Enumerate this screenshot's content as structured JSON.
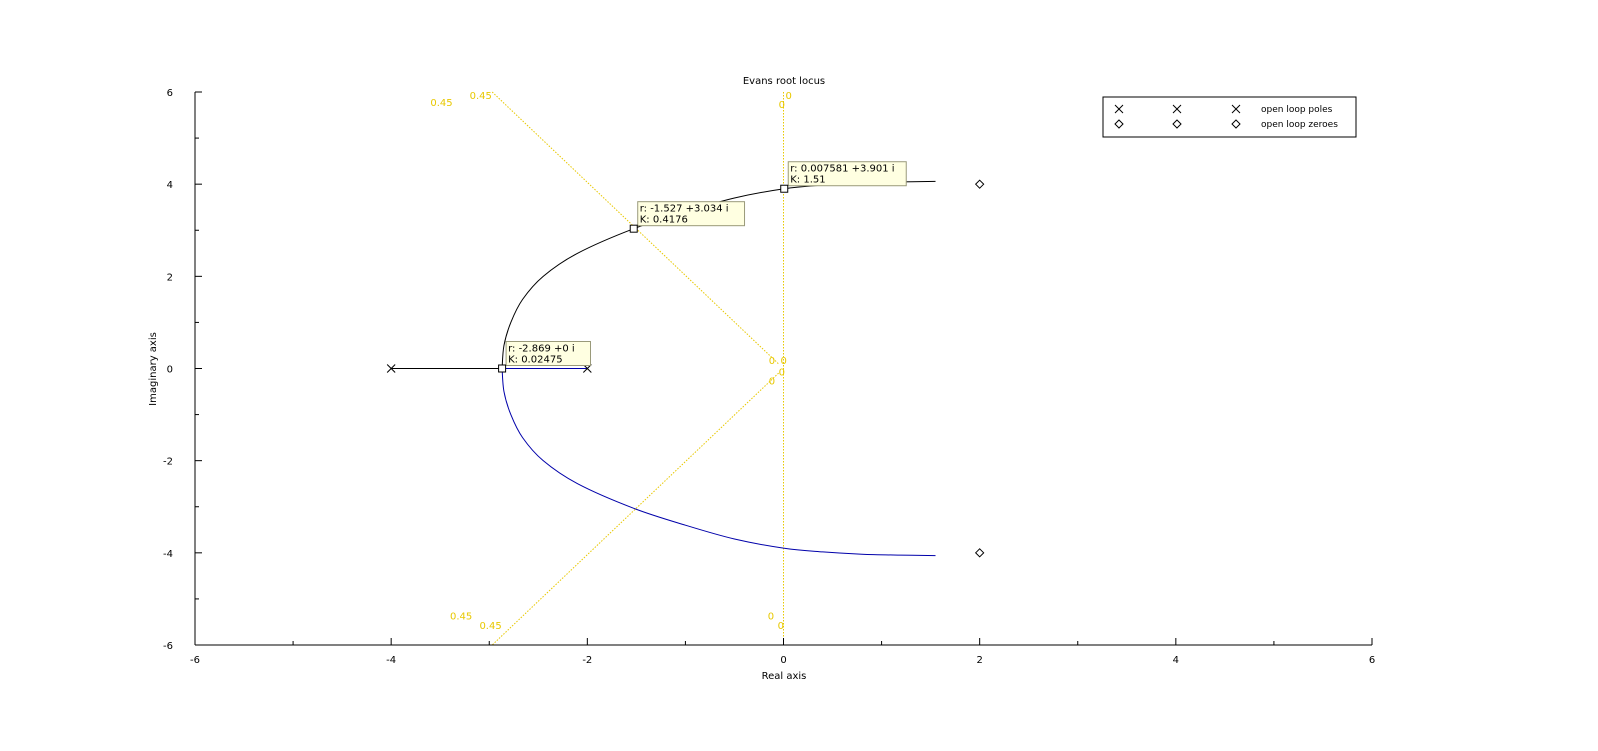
{
  "chart_data": {
    "type": "line",
    "title": "Evans root locus",
    "xlabel": "Real axis",
    "ylabel": "Imaginary axis",
    "xlim": [
      -6,
      6
    ],
    "ylim": [
      -6,
      6
    ],
    "xticks": [
      -6,
      -4,
      -2,
      0,
      2,
      4,
      6
    ],
    "yticks": [
      -6,
      -4,
      -2,
      0,
      2,
      4,
      6
    ],
    "xtick_labels": [
      "-6",
      "-4",
      "-2",
      "0",
      "2",
      "4",
      "6"
    ],
    "ytick_labels": [
      "-6",
      "-4",
      "-2",
      "0",
      "2",
      "4",
      "6"
    ],
    "grid": false,
    "legend_position": "top-right",
    "colors": {
      "branch_upper": "#000000",
      "branch_lower": "#0000aa",
      "damping_grid": "#e8c800",
      "datatip_bg": "#ffffe1"
    },
    "open_loop_poles": [
      {
        "re": -4,
        "im": 0
      },
      {
        "re": -2,
        "im": 0
      }
    ],
    "open_loop_zeroes": [
      {
        "re": 2,
        "im": 4
      },
      {
        "re": 2,
        "im": -4
      }
    ],
    "series": [
      {
        "name": "",
        "branch": "upper",
        "points": [
          [
            -4,
            0
          ],
          [
            -2.869,
            0
          ],
          [
            -2.85,
            0.5
          ],
          [
            -2.78,
            1.0
          ],
          [
            -2.66,
            1.5
          ],
          [
            -2.45,
            2.0
          ],
          [
            -2.1,
            2.5
          ],
          [
            -1.527,
            3.034
          ],
          [
            -1.0,
            3.4
          ],
          [
            -0.5,
            3.7
          ],
          [
            0.007581,
            3.901
          ],
          [
            0.4,
            3.98
          ],
          [
            0.8,
            4.03
          ],
          [
            1.2,
            4.05
          ],
          [
            1.55,
            4.06
          ]
        ]
      },
      {
        "name": "",
        "branch": "lower",
        "points": [
          [
            -2,
            0
          ],
          [
            -2.869,
            0
          ],
          [
            -2.85,
            -0.5
          ],
          [
            -2.78,
            -1.0
          ],
          [
            -2.66,
            -1.5
          ],
          [
            -2.45,
            -2.0
          ],
          [
            -2.1,
            -2.5
          ],
          [
            -1.527,
            -3.034
          ],
          [
            -1.0,
            -3.4
          ],
          [
            -0.5,
            -3.7
          ],
          [
            0.007581,
            -3.901
          ],
          [
            0.4,
            -3.98
          ],
          [
            0.8,
            -4.03
          ],
          [
            1.2,
            -4.05
          ],
          [
            1.55,
            -4.06
          ]
        ]
      }
    ],
    "damping_lines": [
      {
        "from": [
          -2.97,
          6.0
        ],
        "to": [
          -0.05,
          0.1
        ]
      },
      {
        "from": [
          -0.05,
          -0.1
        ],
        "to": [
          -2.97,
          -6.0
        ]
      },
      {
        "from": [
          0.0,
          6.0
        ],
        "to": [
          0.0,
          -6.0
        ]
      }
    ],
    "damping_labels": [
      {
        "text": "0.45",
        "re": -3.6,
        "im": 5.7
      },
      {
        "text": "0.45",
        "re": -3.2,
        "im": 5.85
      },
      {
        "text": "0",
        "re": -0.05,
        "im": 5.65
      },
      {
        "text": "0",
        "re": 0.02,
        "im": 5.85
      },
      {
        "text": "0",
        "re": -0.15,
        "im": 0.1
      },
      {
        "text": "0",
        "re": -0.03,
        "im": 0.1
      },
      {
        "text": "0",
        "re": -0.05,
        "im": -0.15
      },
      {
        "text": "0",
        "re": -0.15,
        "im": -0.35
      },
      {
        "text": "0.45",
        "re": -3.4,
        "im": -5.45
      },
      {
        "text": "0.45",
        "re": -3.1,
        "im": -5.65
      },
      {
        "text": "0",
        "re": -0.16,
        "im": -5.45
      },
      {
        "text": "0",
        "re": -0.06,
        "im": -5.65
      }
    ],
    "datatips": [
      {
        "re": -2.869,
        "im": 0,
        "line1": "r: -2.869 +0 i",
        "line2": "K: 0.02475"
      },
      {
        "re": -1.527,
        "im": 3.034,
        "line1": "r: -1.527 +3.034 i",
        "line2": "K: 0.4176"
      },
      {
        "re": 0.007581,
        "im": 3.901,
        "line1": "r: 0.007581 +3.901 i",
        "line2": "K: 1.51"
      }
    ],
    "legend": [
      {
        "symbol": "cross",
        "label": "open loop poles"
      },
      {
        "symbol": "diamond",
        "label": "open loop zeroes"
      }
    ]
  }
}
